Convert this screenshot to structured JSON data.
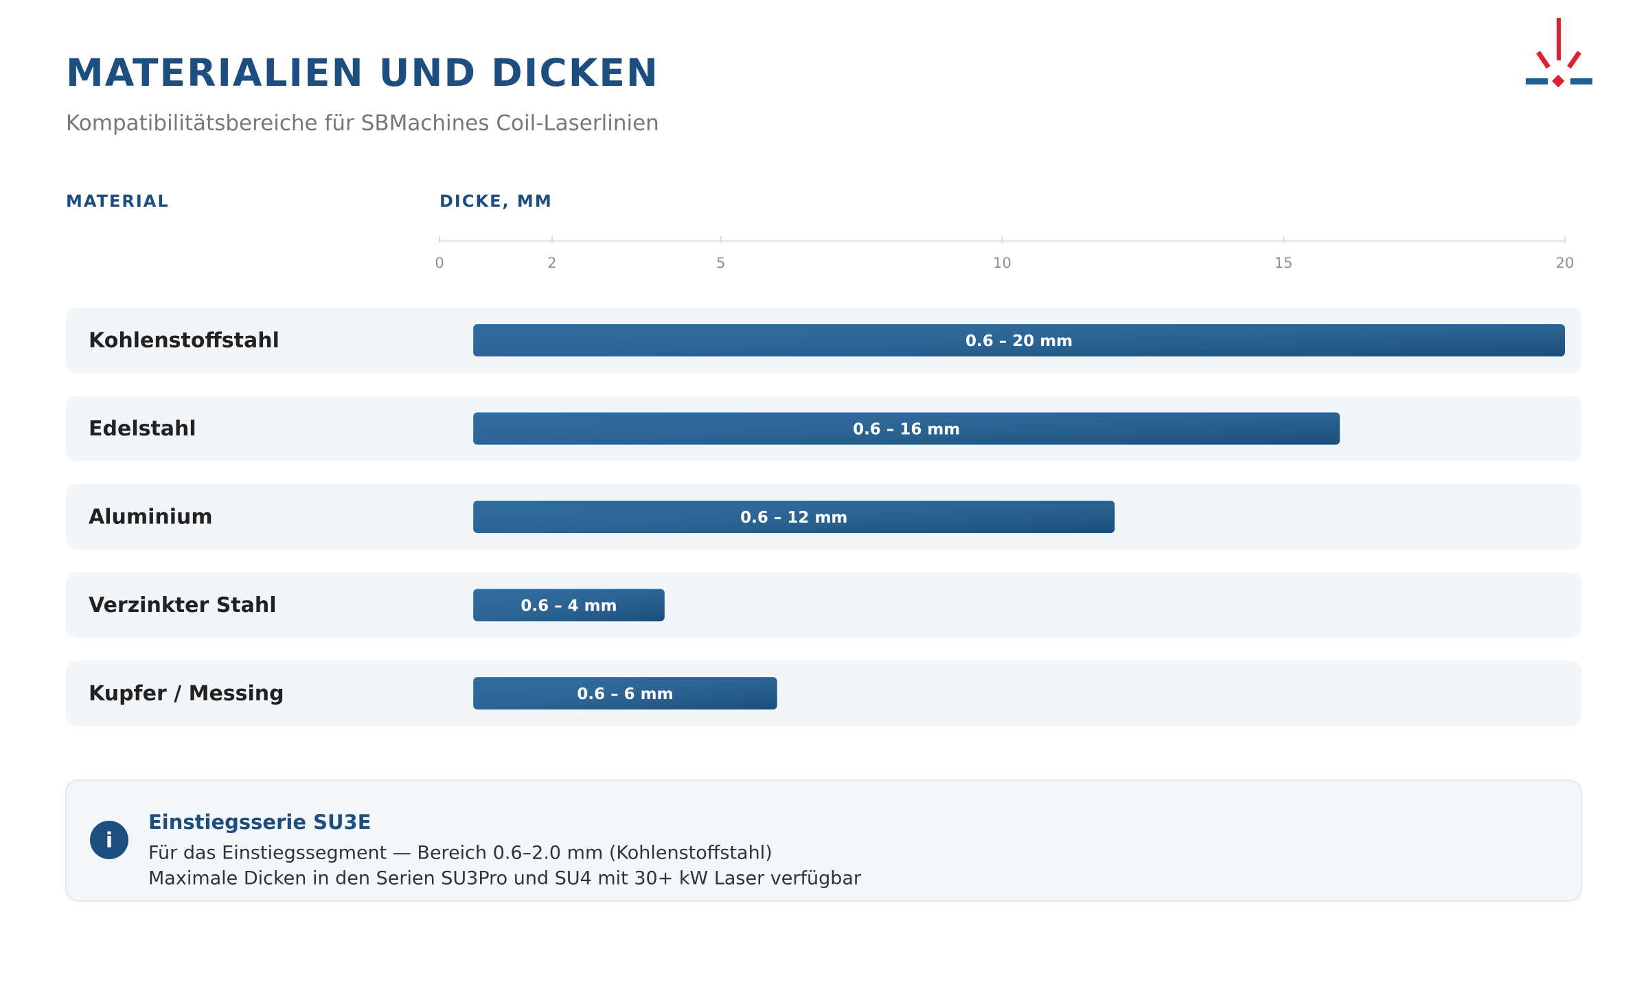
{
  "chart_data": {
    "type": "range-bar",
    "title": "MATERIALIEN UND DICKEN",
    "subtitle": "Kompatibilitätsbereiche für SBMachines Coil-Laserlinien",
    "category_header": "MATERIAL",
    "x_label": "DICKE, MM",
    "categories": [
      "Kohlenstoffstahl",
      "Edelstahl",
      "Aluminium",
      "Verzinkter Stahl",
      "Kupfer / Messing"
    ],
    "starts": [
      0.6,
      0.6,
      0.6,
      0.6,
      0.6
    ],
    "ends": [
      20,
      16,
      12,
      4,
      6
    ],
    "value_labels": [
      "0.6 – 20 mm",
      "0.6 – 16 mm",
      "0.6 – 12 mm",
      "0.6 – 4 mm",
      "0.6 – 6 mm"
    ],
    "color": "#1f5f96",
    "xlim": [
      0,
      20
    ],
    "xticks": [
      0,
      2,
      5,
      10,
      15,
      20
    ]
  },
  "note": {
    "title": "Einstiegsserie SU3E",
    "lines": [
      "Für das Einstiegssegment — Bereich 0.6–2.0 mm (Kohlenstoffstahl)",
      "Maximale Dicken in den Serien SU3Pro und SU4 mit 30+ kW Laser verfügbar"
    ]
  }
}
